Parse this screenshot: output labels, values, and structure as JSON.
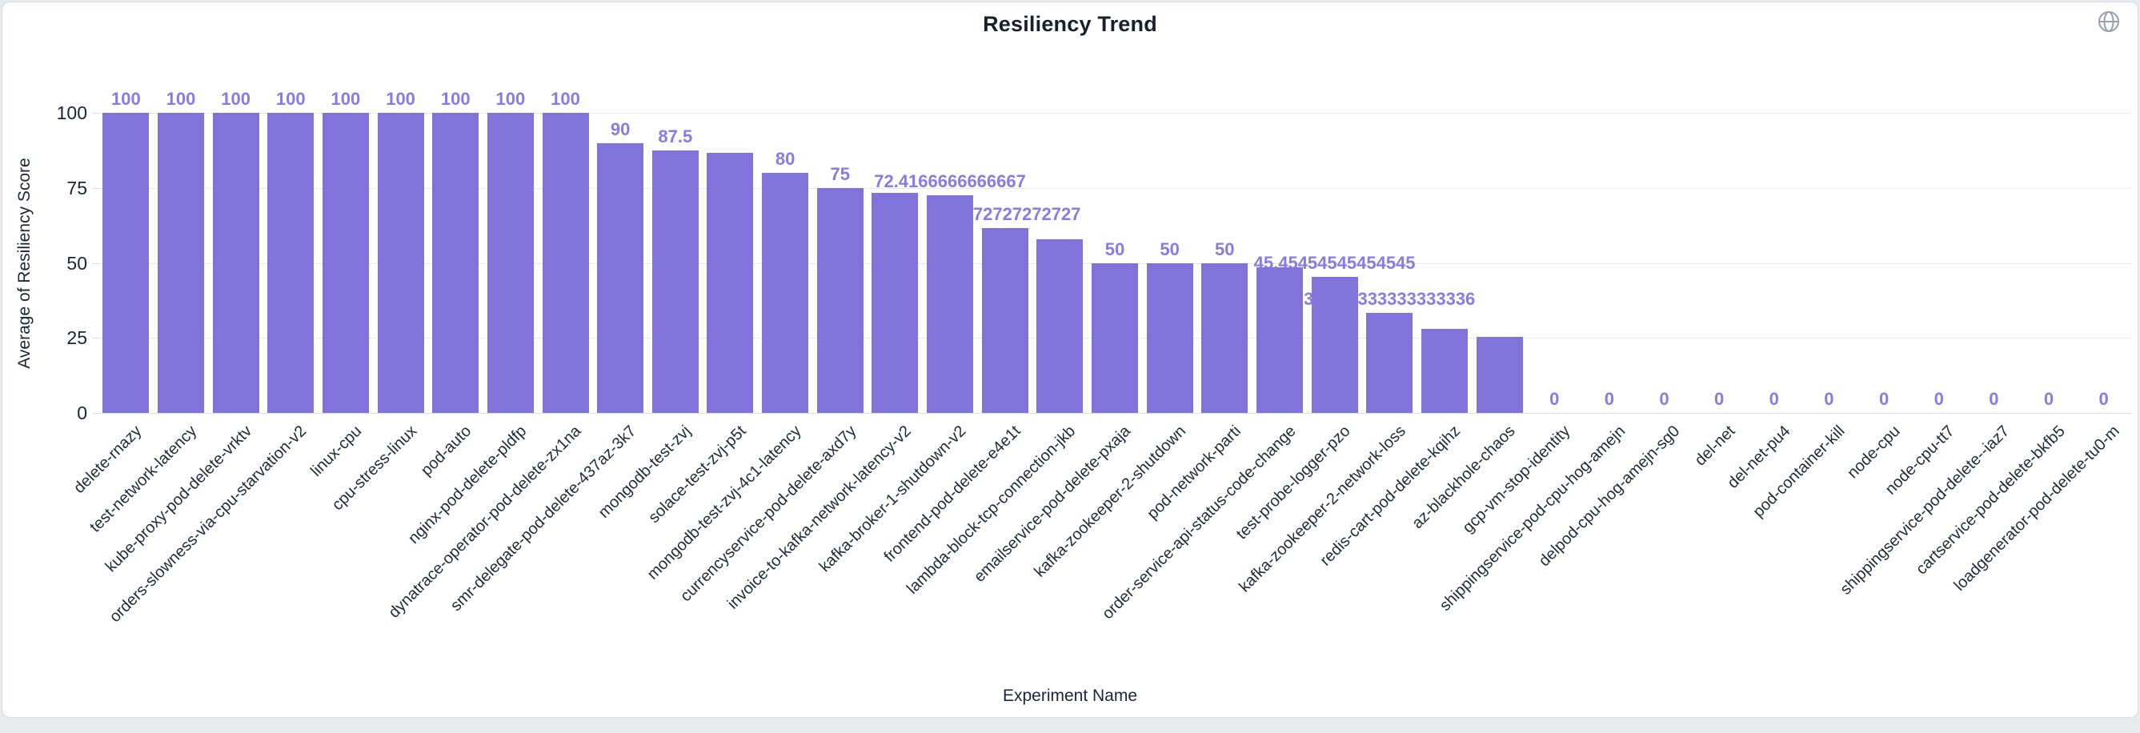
{
  "header": {
    "title": "Resiliency Trend",
    "globe_icon": "globe-icon",
    "globe_color": "#98a0ac"
  },
  "colors": {
    "bar": "#8173d9",
    "value_label": "#8a7ae4",
    "gridline": "#e9eaee",
    "axis_text": "#1b2433",
    "card_background": "#ffffff",
    "page_background": "#e8eaed"
  },
  "chart_data": {
    "type": "bar",
    "title": "Resiliency Trend",
    "xlabel": "Experiment Name",
    "ylabel": "Average of Resiliency Score",
    "ylim": [
      0,
      100
    ],
    "yticks": [
      0,
      25,
      50,
      75,
      100
    ],
    "grid": true,
    "legend": "none",
    "bars": [
      {
        "name": "delete-rnazy",
        "value": 100,
        "label": "100"
      },
      {
        "name": "test-network-latency",
        "value": 100,
        "label": "100"
      },
      {
        "name": "kube-proxy-pod-delete-vrktv",
        "value": 100,
        "label": "100"
      },
      {
        "name": "orders-slowness-via-cpu-starvation-v2",
        "value": 100,
        "label": "100"
      },
      {
        "name": "linux-cpu",
        "value": 100,
        "label": "100"
      },
      {
        "name": "cpu-stress-linux",
        "value": 100,
        "label": "100"
      },
      {
        "name": "pod-auto",
        "value": 100,
        "label": "100"
      },
      {
        "name": "nginx-pod-delete-pldfp",
        "value": 100,
        "label": "100"
      },
      {
        "name": "dynatrace-operator-pod-delete-zx1na",
        "value": 100,
        "label": "100"
      },
      {
        "name": "smr-delegate-pod-delete-437az-3k7",
        "value": 90,
        "label": "90"
      },
      {
        "name": "mongodb-test-zvj",
        "value": 87.5,
        "label": "87.5"
      },
      {
        "name": "solace-test-zvj-p5t",
        "value": 86.7,
        "label": ""
      },
      {
        "name": "mongodb-test-zvj-4c1-latency",
        "value": 80,
        "label": "80"
      },
      {
        "name": "currencyservice-pod-delete-axd7y",
        "value": 75,
        "label": "75"
      },
      {
        "name": "invoice-to-kafka-network-latency-v2",
        "value": 73.3,
        "label": ""
      },
      {
        "name": "kafka-broker-1-shutdown-v2",
        "value": 72.4166666666667,
        "label": "72.4166666666667"
      },
      {
        "name": "frontend-pod-delete-e4e1t",
        "value": 61.7272727272727,
        "label": "61.7272727272727"
      },
      {
        "name": "lambda-block-tcp-connection-jkb",
        "value": 58,
        "label": ""
      },
      {
        "name": "emailservice-pod-delete-pxaja",
        "value": 50,
        "label": "50"
      },
      {
        "name": "kafka-zookeeper-2-shutdown",
        "value": 50,
        "label": "50"
      },
      {
        "name": "pod-network-parti",
        "value": 50,
        "label": "50"
      },
      {
        "name": "order-service-api-status-code-change",
        "value": 48.5,
        "label": ""
      },
      {
        "name": "test-probe-logger-pzo",
        "value": 45.45454545454545,
        "label": "45.45454545454545"
      },
      {
        "name": "kafka-zookeeper-2-network-loss",
        "value": 33.333333333333336,
        "label": "33.333333333333336"
      },
      {
        "name": "redis-cart-pod-delete-kqihz",
        "value": 28,
        "label": ""
      },
      {
        "name": "az-blackhole-chaos",
        "value": 25.3,
        "label": ""
      },
      {
        "name": "gcp-vm-stop-identity",
        "value": 0,
        "label": "0"
      },
      {
        "name": "shippingservice-pod-cpu-hog-amejn",
        "value": 0,
        "label": "0"
      },
      {
        "name": "delpod-cpu-hog-amejn-sg0",
        "value": 0,
        "label": "0"
      },
      {
        "name": "del-net",
        "value": 0,
        "label": "0"
      },
      {
        "name": "del-net-pu4",
        "value": 0,
        "label": "0"
      },
      {
        "name": "pod-container-kill",
        "value": 0,
        "label": "0"
      },
      {
        "name": "node-cpu",
        "value": 0,
        "label": "0"
      },
      {
        "name": "node-cpu-tt7",
        "value": 0,
        "label": "0"
      },
      {
        "name": "shippingservice-pod-delete--iaz7",
        "value": 0,
        "label": "0"
      },
      {
        "name": "cartservice-pod-delete-bkfb5",
        "value": 0,
        "label": "0"
      },
      {
        "name": "loadgenerator-pod-delete-tu0-m",
        "value": 0,
        "label": "0"
      }
    ]
  }
}
